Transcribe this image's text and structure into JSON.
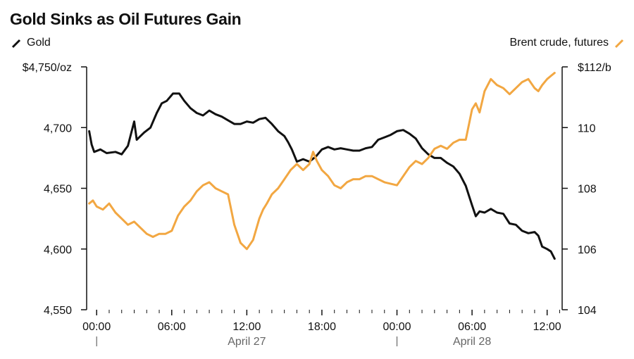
{
  "header": {
    "title": "Gold Sinks as Oil Futures Gain"
  },
  "colors": {
    "gold": "#111111",
    "brent": "#f2a742",
    "axis": "#111111"
  },
  "chart_data": {
    "type": "line",
    "title": "Gold Sinks as Oil Futures Gain",
    "x_ticks": [
      "00:00",
      "06:00",
      "12:00",
      "18:00",
      "00:00",
      "06:00",
      "12:00"
    ],
    "x_tick_hours": [
      0,
      6,
      12,
      18,
      24,
      30,
      36
    ],
    "date_labels": [
      {
        "label": "April 27",
        "hour": 12
      },
      {
        "label": "April 28",
        "hour": 30
      }
    ],
    "date_separator_hours": [
      0,
      24
    ],
    "x_range": [
      -0.8,
      37.2
    ],
    "left_axis": {
      "series": "Gold",
      "ylim": [
        4550,
        4750
      ],
      "ticks": [
        4550,
        4600,
        4650,
        4700,
        4750
      ],
      "tick_labels": [
        "4,550",
        "4,600",
        "4,650",
        "4,700",
        "$4,750/oz"
      ]
    },
    "right_axis": {
      "series": "Brent crude, futures",
      "ylim": [
        104,
        112
      ],
      "ticks": [
        104,
        106,
        108,
        110,
        112
      ],
      "tick_labels": [
        "104",
        "106",
        "108",
        "110",
        "$112/b"
      ]
    },
    "series": [
      {
        "name": "Gold",
        "axis": "left",
        "x": [
          -0.6,
          -0.4,
          -0.2,
          0.3,
          0.8,
          1.5,
          2,
          2.5,
          3,
          3.2,
          3.4,
          3.8,
          4.3,
          4.8,
          5.2,
          5.6,
          6.1,
          6.6,
          7,
          7.5,
          8,
          8.5,
          9,
          9.5,
          10,
          10.5,
          11,
          11.5,
          12,
          12.5,
          13,
          13.5,
          14,
          14.5,
          15,
          15.3,
          15.6,
          16,
          16.5,
          17,
          17.5,
          18,
          18.5,
          19,
          19.5,
          20,
          20.5,
          21,
          21.5,
          22,
          22.5,
          23,
          23.5,
          24,
          24.5,
          25,
          25.5,
          26,
          26.5,
          27,
          27.5,
          28,
          28.5,
          29,
          29.5,
          30,
          30.3,
          30.6,
          31,
          31.5,
          32,
          32.5,
          33,
          33.5,
          34,
          34.5,
          35,
          35.3,
          35.6,
          36,
          36.3,
          36.6
        ],
        "values": [
          4697,
          4686,
          4680,
          4682,
          4679,
          4680,
          4678,
          4685,
          4705,
          4690,
          4692,
          4696,
          4700,
          4712,
          4720,
          4722,
          4728,
          4728,
          4722,
          4716,
          4712,
          4710,
          4714,
          4711,
          4709,
          4706,
          4703,
          4703,
          4705,
          4704,
          4707,
          4708,
          4703,
          4697,
          4693,
          4688,
          4682,
          4672,
          4674,
          4672,
          4676,
          4682,
          4684,
          4682,
          4683,
          4682,
          4681,
          4681,
          4683,
          4684,
          4690,
          4692,
          4694,
          4697,
          4698,
          4695,
          4691,
          4683,
          4678,
          4675,
          4675,
          4671,
          4668,
          4662,
          4652,
          4636,
          4627,
          4631,
          4630,
          4633,
          4630,
          4629,
          4621,
          4620,
          4615,
          4613,
          4614,
          4611,
          4602,
          4600,
          4598,
          4592
        ]
      },
      {
        "name": "Brent crude, futures",
        "axis": "right",
        "x": [
          -0.6,
          -0.3,
          0,
          0.5,
          1,
          1.5,
          2,
          2.5,
          3,
          3.5,
          4,
          4.5,
          5,
          5.5,
          6,
          6.5,
          7,
          7.5,
          8,
          8.5,
          9,
          9.5,
          10,
          10.5,
          11,
          11.5,
          12,
          12.5,
          13,
          13.3,
          13.6,
          14,
          14.5,
          15,
          15.5,
          16,
          16.5,
          17,
          17.3,
          17.6,
          18,
          18.5,
          19,
          19.5,
          20,
          20.5,
          21,
          21.5,
          22,
          23,
          24,
          25,
          25.5,
          26,
          26.5,
          27,
          27.5,
          28,
          28.5,
          29,
          29.5,
          30,
          30.3,
          30.6,
          31,
          31.5,
          32,
          32.5,
          33,
          33.5,
          34,
          34.5,
          35,
          35.3,
          35.6,
          36,
          36.3,
          36.6
        ],
        "values": [
          107.5,
          107.6,
          107.4,
          107.3,
          107.5,
          107.2,
          107.0,
          106.8,
          106.9,
          106.7,
          106.5,
          106.4,
          106.5,
          106.5,
          106.6,
          107.1,
          107.4,
          107.6,
          107.9,
          108.1,
          108.2,
          108.0,
          107.9,
          107.8,
          106.8,
          106.2,
          106.0,
          106.3,
          107.0,
          107.3,
          107.5,
          107.8,
          108.0,
          108.3,
          108.6,
          108.8,
          108.6,
          108.8,
          109.2,
          108.9,
          108.6,
          108.4,
          108.1,
          108.0,
          108.2,
          108.3,
          108.3,
          108.4,
          108.4,
          108.2,
          108.1,
          108.7,
          108.9,
          108.8,
          109.0,
          109.3,
          109.4,
          109.3,
          109.5,
          109.6,
          109.6,
          110.6,
          110.8,
          110.5,
          111.2,
          111.6,
          111.4,
          111.3,
          111.1,
          111.3,
          111.5,
          111.6,
          111.3,
          111.2,
          111.4,
          111.6,
          111.7,
          111.8
        ]
      }
    ]
  },
  "legend": {
    "gold_label": "Gold",
    "brent_label": "Brent crude, futures"
  }
}
